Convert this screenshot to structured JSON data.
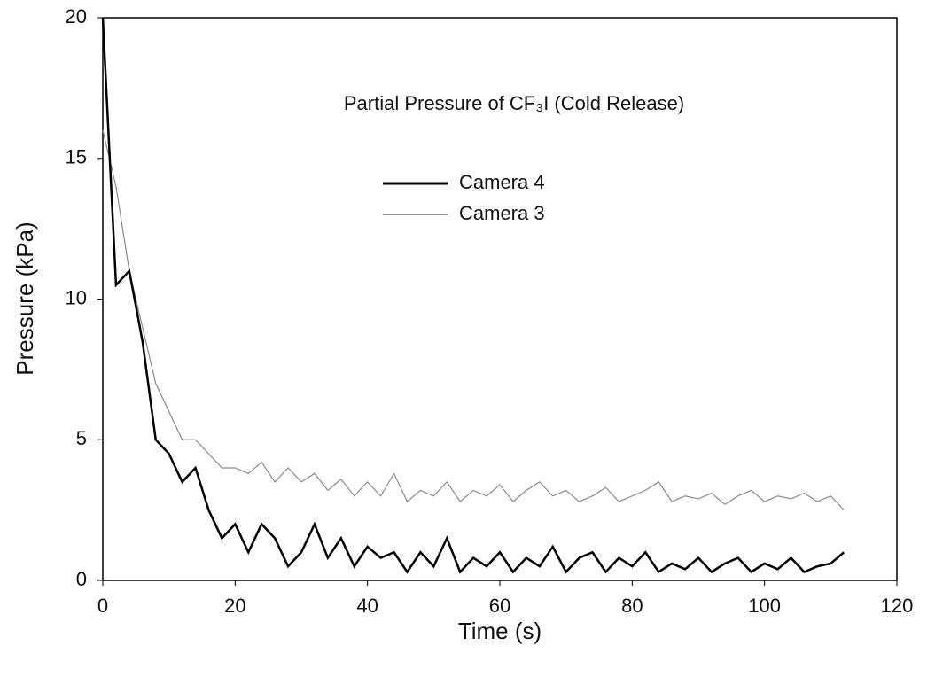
{
  "chart_data": {
    "type": "line",
    "title": "Partial Pressure of CF₃I (Cold Release)",
    "x_label": "Time (s)",
    "y_label": "Pressure (kPa)",
    "x": [
      0,
      2,
      4,
      6,
      8,
      10,
      12,
      14,
      16,
      18,
      20,
      22,
      24,
      26,
      28,
      30,
      32,
      34,
      36,
      38,
      40,
      42,
      44,
      46,
      48,
      50,
      52,
      54,
      56,
      58,
      60,
      62,
      64,
      66,
      68,
      70,
      72,
      74,
      76,
      78,
      80,
      82,
      84,
      86,
      88,
      90,
      92,
      94,
      96,
      98,
      100,
      102,
      104,
      106,
      108,
      110,
      112
    ],
    "series": [
      {
        "name": "Camera 4",
        "color": "#000000",
        "width": 2.5,
        "values": [
          20,
          10.5,
          11,
          8.5,
          5,
          4.5,
          3.5,
          4,
          2.5,
          1.5,
          2,
          1,
          2,
          1.5,
          0.5,
          1,
          2,
          0.8,
          1.5,
          0.5,
          1.2,
          0.8,
          1,
          0.3,
          1,
          0.5,
          1.5,
          0.3,
          0.8,
          0.5,
          1,
          0.3,
          0.8,
          0.5,
          1.2,
          0.3,
          0.8,
          1,
          0.3,
          0.8,
          0.5,
          1,
          0.3,
          0.6,
          0.4,
          0.8,
          0.3,
          0.6,
          0.8,
          0.3,
          0.6,
          0.4,
          0.8,
          0.3,
          0.5,
          0.6,
          1
        ]
      },
      {
        "name": "Camera 3",
        "color": "#8a8a8a",
        "width": 1.2,
        "values": [
          16,
          14,
          11,
          9,
          7,
          6,
          5,
          5,
          4.5,
          4,
          4,
          3.8,
          4.2,
          3.5,
          4,
          3.5,
          3.8,
          3.2,
          3.6,
          3,
          3.5,
          3,
          3.8,
          2.8,
          3.2,
          3,
          3.5,
          2.8,
          3.2,
          3,
          3.4,
          2.8,
          3.2,
          3.5,
          3,
          3.2,
          2.8,
          3,
          3.3,
          2.8,
          3,
          3.2,
          3.5,
          2.8,
          3,
          2.9,
          3.1,
          2.7,
          3,
          3.2,
          2.8,
          3,
          2.9,
          3.1,
          2.8,
          3,
          2.5
        ]
      }
    ],
    "xlim": [
      0,
      120
    ],
    "xticks": [
      0,
      20,
      40,
      60,
      80,
      100,
      120
    ],
    "ylim": [
      0,
      20
    ],
    "yticks": [
      0,
      5,
      10,
      15,
      20
    ]
  }
}
